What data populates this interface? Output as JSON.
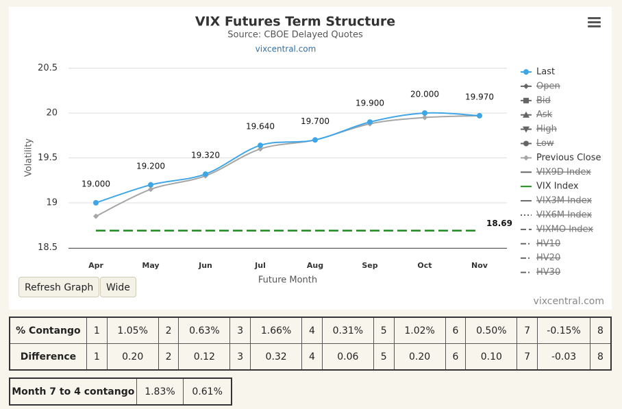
{
  "chart_data": {
    "type": "line",
    "title": "VIX Futures Term Structure",
    "subtitle": "Source: CBOE Delayed Quotes",
    "link": "vixcentral.com",
    "credit": "vixcentral.com",
    "x_label": "Future Month",
    "y_label": "Volatility",
    "categories": [
      "Apr",
      "May",
      "Jun",
      "Jul",
      "Aug",
      "Sep",
      "Oct",
      "Nov"
    ],
    "ylim": [
      18.5,
      20.5
    ],
    "yticks": [
      18.5,
      19,
      19.5,
      20,
      20.5
    ],
    "grid": true,
    "series": [
      {
        "name": "Last",
        "color": "#3ea5e6",
        "marker": "circle",
        "visible": true,
        "values": [
          19.0,
          19.2,
          19.32,
          19.64,
          19.7,
          19.9,
          20.0,
          19.97
        ],
        "value_labels": [
          "19.000",
          "19.200",
          "19.320",
          "19.640",
          "19.700",
          "19.900",
          "20.000",
          "19.970"
        ]
      },
      {
        "name": "Open",
        "color": "#777777",
        "marker": "diamond",
        "visible": false
      },
      {
        "name": "Bid",
        "color": "#777777",
        "marker": "square",
        "visible": false
      },
      {
        "name": "Ask",
        "color": "#777777",
        "marker": "triangle",
        "visible": false
      },
      {
        "name": "High",
        "color": "#777777",
        "marker": "triangle-down",
        "visible": false
      },
      {
        "name": "Low",
        "color": "#777777",
        "marker": "circle",
        "visible": false
      },
      {
        "name": "Previous Close",
        "color": "#a6a6a6",
        "marker": "diamond",
        "visible": true,
        "values": [
          18.85,
          19.15,
          19.3,
          19.6,
          19.7,
          19.88,
          19.95,
          19.97
        ]
      },
      {
        "name": "VIX9D Index",
        "color": "#777777",
        "dash": "solid",
        "visible": false
      },
      {
        "name": "VIX Index",
        "color": "#1a8a1a",
        "dash": "solid",
        "visible": true,
        "value": 18.69
      },
      {
        "name": "VIX3M Index",
        "color": "#777777",
        "dash": "solid",
        "visible": false
      },
      {
        "name": "VIX6M Index",
        "color": "#777777",
        "dash": "dot",
        "visible": false
      },
      {
        "name": "VIXMO Index",
        "color": "#777777",
        "dash": "dash",
        "visible": false
      },
      {
        "name": "HV10",
        "color": "#777777",
        "dash": "dashdot",
        "visible": false
      },
      {
        "name": "HV20",
        "color": "#777777",
        "dash": "dashdot",
        "visible": false
      },
      {
        "name": "HV30",
        "color": "#777777",
        "dash": "dashdot",
        "visible": false
      }
    ]
  },
  "buttons": [
    "Refresh Graph",
    "Wide"
  ],
  "contango_table": {
    "rows": [
      [
        "% Contango",
        "1",
        "1.05%",
        "2",
        "0.63%",
        "3",
        "1.66%",
        "4",
        "0.31%",
        "5",
        "1.02%",
        "6",
        "0.50%",
        "7",
        "-0.15%",
        "8"
      ],
      [
        "Difference",
        "1",
        "0.20",
        "2",
        "0.12",
        "3",
        "0.32",
        "4",
        "0.06",
        "5",
        "0.20",
        "6",
        "0.10",
        "7",
        "-0.03",
        "8"
      ]
    ]
  },
  "month_table": {
    "rows": [
      [
        "Month 7 to 4 contango",
        "1.83%",
        "0.61%"
      ]
    ]
  }
}
